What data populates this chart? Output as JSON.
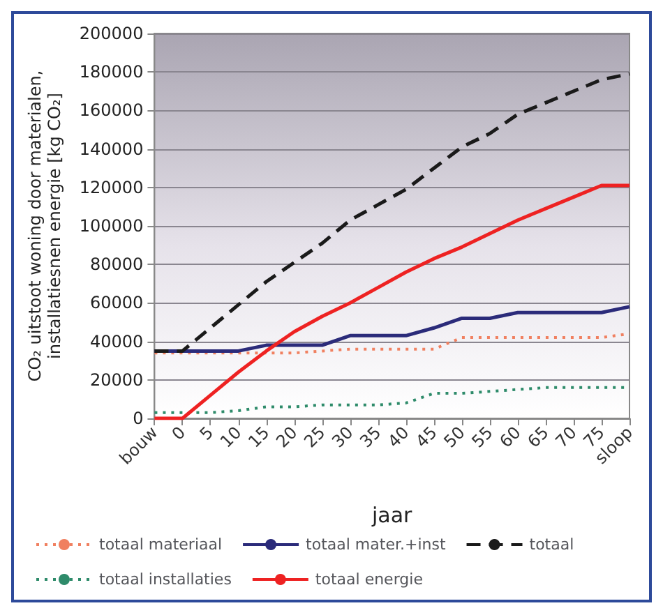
{
  "chart_data": {
    "type": "line",
    "xlabel": "jaar",
    "ylabel": "CO₂ uitstoot woning door materialen,\ninstallatiesnen energie [kg CO₂]",
    "categories": [
      "bouw",
      "0",
      "5",
      "10",
      "15",
      "20",
      "25",
      "30",
      "35",
      "40",
      "45",
      "50",
      "55",
      "60",
      "65",
      "70",
      "75",
      "sloop"
    ],
    "series": [
      {
        "name": "totaal materiaal",
        "color": "#f08060",
        "line_style": "dotted",
        "values": [
          34000,
          34000,
          34000,
          34000,
          34000,
          34000,
          35000,
          36000,
          36000,
          36000,
          36000,
          42000,
          42000,
          42000,
          42000,
          42000,
          42000,
          44000
        ]
      },
      {
        "name": "totaal mater.+inst",
        "color": "#2b2b7a",
        "line_style": "solid",
        "values": [
          35000,
          35000,
          35000,
          35000,
          38000,
          38000,
          38000,
          43000,
          43000,
          43000,
          47000,
          52000,
          52000,
          55000,
          55000,
          55000,
          55000,
          58000
        ]
      },
      {
        "name": "totaal",
        "color": "#1a1a1a",
        "line_style": "dashed",
        "values": [
          35000,
          35000,
          47000,
          59000,
          71000,
          81000,
          91000,
          103000,
          111000,
          119000,
          130000,
          141000,
          148000,
          158000,
          164000,
          170000,
          176000,
          179000
        ]
      },
      {
        "name": "totaal installaties",
        "color": "#2e8b6a",
        "line_style": "dotted",
        "values": [
          3000,
          3000,
          3000,
          4000,
          6000,
          6000,
          7000,
          7000,
          7000,
          8000,
          13000,
          13000,
          14000,
          15000,
          16000,
          16000,
          16000,
          16000
        ]
      },
      {
        "name": "totaal energie",
        "color": "#ee2222",
        "line_style": "solid",
        "values": [
          0,
          0,
          12000,
          24000,
          35000,
          45000,
          53000,
          60000,
          68000,
          76000,
          83000,
          89000,
          96000,
          103000,
          109000,
          115000,
          121000,
          121000
        ]
      }
    ],
    "ylim": [
      0,
      200000
    ],
    "yticks": [
      0,
      20000,
      40000,
      60000,
      80000,
      100000,
      120000,
      140000,
      160000,
      180000,
      200000
    ],
    "grid": "y",
    "legend": "bottom",
    "marker": "none"
  }
}
